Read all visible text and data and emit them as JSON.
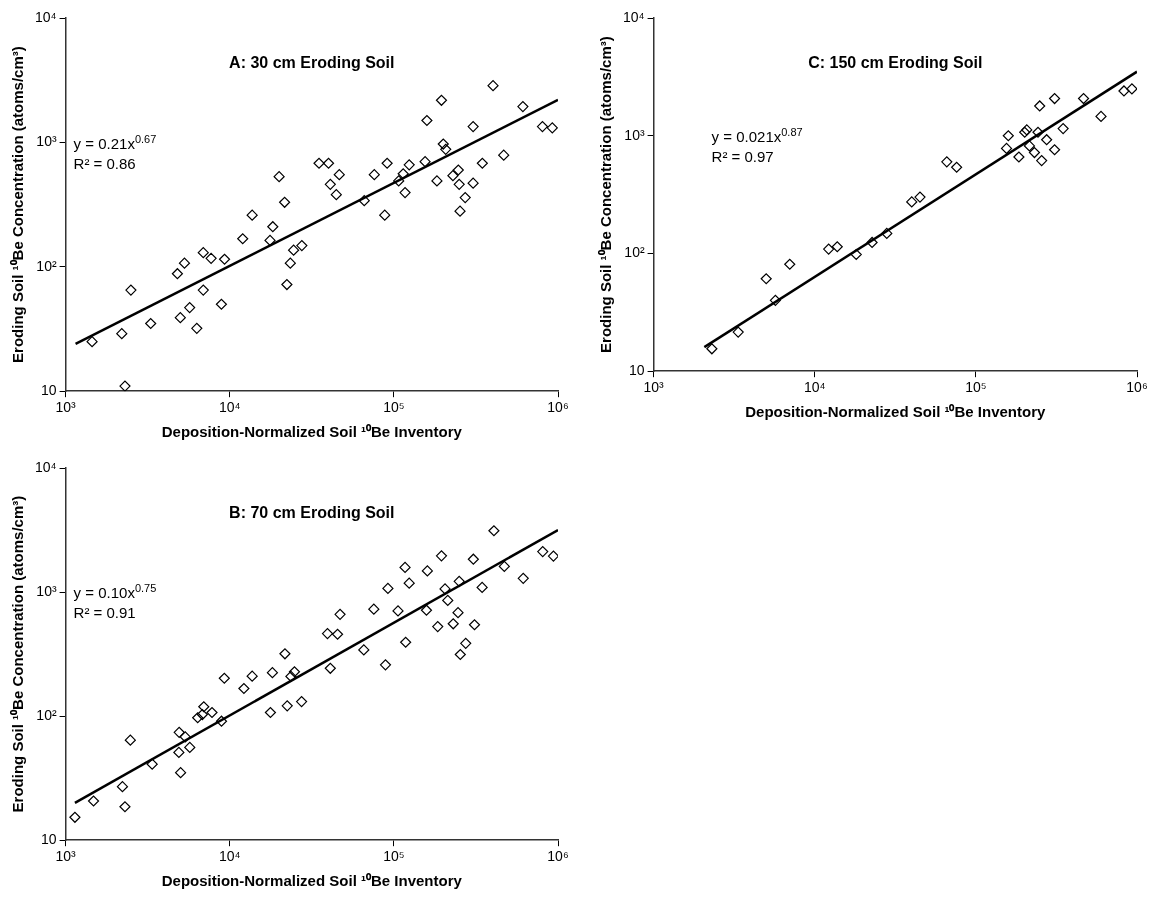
{
  "chart_data": [
    {
      "type": "scatter",
      "title": "A: 30 cm Eroding Soil",
      "xlabel": "Deposition-Normalized Soil ¹⁰Be Inventory",
      "ylabel": "Eroding Soil ¹⁰Be Concentration (atoms/cm³)",
      "log": "xy",
      "grid": false,
      "xlim": [
        1000,
        1000000
      ],
      "ylim": [
        10,
        10000
      ],
      "xticks": [
        {
          "value": 1000,
          "label": "10³"
        },
        {
          "value": 10000,
          "label": "10⁴"
        },
        {
          "value": 100000,
          "label": "10⁵"
        },
        {
          "value": 1000000,
          "label": "10⁶"
        }
      ],
      "yticks": [
        {
          "value": 10,
          "label": "10"
        },
        {
          "value": 100,
          "label": "10²"
        },
        {
          "value": 1000,
          "label": "10³"
        },
        {
          "value": 10000,
          "label": "10⁴"
        }
      ],
      "annotations": [
        "y = 0.21x$^{0.67}$",
        "R² = 0.86"
      ],
      "series": [
        {
          "type": "scatter",
          "marker": "diamond",
          "color": "#000000",
          "x": [
            1450,
            2200,
            2300,
            2500,
            3300,
            4800,
            5300,
            5000,
            5700,
            6300,
            6900,
            6900,
            7700,
            8900,
            9300,
            12000,
            13700,
            17600,
            18300,
            20000,
            21600,
            22300,
            23400,
            24500,
            27500,
            35000,
            40000,
            41000,
            44600,
            46500,
            66000,
            76000,
            88000,
            91000,
            107000,
            114000,
            117000,
            124000,
            155000,
            159000,
            183000,
            195000,
            200000,
            207000,
            229000,
            247000,
            250000,
            253000,
            272000,
            304000,
            304000,
            346000,
            402000,
            467000,
            611000,
            804000,
            923000
          ],
          "values": [
            25,
            29,
            11,
            65,
            35,
            88,
            107,
            39,
            47,
            32,
            130,
            65,
            117,
            50,
            115,
            168,
            260,
            163,
            210,
            530,
            330,
            72,
            107,
            136,
            148,
            680,
            680,
            460,
            380,
            550,
            340,
            550,
            260,
            680,
            490,
            560,
            395,
            660,
            700,
            1500,
            490,
            2180,
            970,
            880,
            540,
            600,
            460,
            280,
            360,
            1340,
            470,
            680,
            2860,
            790,
            1940,
            1340,
            1310
          ]
        },
        {
          "type": "line",
          "marker": "none",
          "color": "#000000",
          "x": [
            1150,
            1000000
          ],
          "values": [
            24,
            2200
          ]
        }
      ]
    },
    {
      "type": "scatter",
      "title": "C: 150 cm Eroding Soil",
      "xlabel": "Deposition-Normalized Soil ¹⁰Be Inventory",
      "ylabel": "Eroding Soil ¹⁰Be Concentration (atoms/cm³)",
      "log": "xy",
      "grid": false,
      "xlim": [
        1000,
        1000000
      ],
      "ylim": [
        10,
        10000
      ],
      "xticks": [
        {
          "value": 1000,
          "label": "10³"
        },
        {
          "value": 10000,
          "label": "10⁴"
        },
        {
          "value": 100000,
          "label": "10⁵"
        },
        {
          "value": 1000000,
          "label": "10⁶"
        }
      ],
      "yticks": [
        {
          "value": 10,
          "label": "10"
        },
        {
          "value": 100,
          "label": "10²"
        },
        {
          "value": 1000,
          "label": "10³"
        },
        {
          "value": 10000,
          "label": "10⁴"
        }
      ],
      "annotations": [
        "y = 0.021x$^{0.87}$",
        "R² = 0.97"
      ],
      "series": [
        {
          "type": "scatter",
          "marker": "diamond",
          "color": "#000000",
          "x": [
            2300,
            3350,
            5000,
            5700,
            7000,
            12200,
            13800,
            18100,
            22700,
            28000,
            40000,
            45000,
            66000,
            76000,
            155000,
            159000,
            185000,
            201000,
            207000,
            215000,
            231000,
            243000,
            249000,
            256000,
            275000,
            308000,
            308000,
            348000,
            466000,
            598000,
            830000,
            930000
          ],
          "values": [
            15.5,
            21.5,
            61,
            40,
            81,
            109,
            114,
            98,
            124,
            148,
            274,
            301,
            600,
            540,
            780,
            1000,
            660,
            1070,
            1120,
            820,
            720,
            1070,
            1790,
            615,
            925,
            2070,
            760,
            1150,
            2070,
            1460,
            2400,
            2500
          ]
        },
        {
          "type": "line",
          "marker": "none",
          "color": "#000000",
          "x": [
            2065,
            1000000
          ],
          "values": [
            16,
            3500
          ]
        }
      ]
    },
    {
      "type": "scatter",
      "title": "B: 70 cm Eroding Soil",
      "xlabel": "Deposition-Normalized Soil ¹⁰Be Inventory",
      "ylabel": "Eroding Soil ¹⁰Be Concentration (atoms/cm³)",
      "log": "xy",
      "grid": false,
      "xlim": [
        1000,
        1000000
      ],
      "ylim": [
        10,
        10000
      ],
      "xticks": [
        {
          "value": 1000,
          "label": "10³"
        },
        {
          "value": 10000,
          "label": "10⁴"
        },
        {
          "value": 100000,
          "label": "10⁵"
        },
        {
          "value": 1000000,
          "label": "10⁶"
        }
      ],
      "yticks": [
        {
          "value": 10,
          "label": "10"
        },
        {
          "value": 100,
          "label": "10²"
        },
        {
          "value": 1000,
          "label": "10³"
        },
        {
          "value": 10000,
          "label": "10⁴"
        }
      ],
      "annotations": [
        "y = 0.10x$^{0.75}$",
        "R² = 0.91"
      ],
      "series": [
        {
          "type": "scatter",
          "marker": "diamond",
          "color": "#000000",
          "x": [
            1140,
            1480,
            2220,
            2300,
            2480,
            3370,
            4920,
            4900,
            5020,
            5360,
            5710,
            6380,
            6810,
            6950,
            7800,
            8910,
            9270,
            12200,
            13700,
            17700,
            18200,
            21700,
            22400,
            23600,
            24800,
            27400,
            39400,
            41000,
            45400,
            47000,
            65600,
            75500,
            88900,
            92000,
            106000,
            117000,
            118000,
            124000,
            158000,
            160000,
            185000,
            195000,
            205000,
            213000,
            230000,
            246000,
            250000,
            254000,
            274000,
            305000,
            310000,
            345000,
            407000,
            471000,
            614000,
            807000,
            938000
          ],
          "values": [
            15.3,
            20.7,
            27,
            18.6,
            64,
            41,
            74,
            51,
            35,
            68,
            56,
            97,
            103,
            119,
            107,
            91,
            202,
            167,
            210,
            107,
            224,
            318,
            121,
            209,
            228,
            131,
            463,
            243,
            457,
            661,
            342,
            728,
            259,
            1070,
            705,
            1580,
            394,
            1180,
            714,
            1480,
            527,
            1960,
            1060,
            857,
            555,
            682,
            1220,
            314,
            386,
            1840,
            545,
            1090,
            3120,
            1610,
            1290,
            2120,
            1950
          ]
        },
        {
          "type": "line",
          "marker": "none",
          "color": "#000000",
          "x": [
            1140,
            1000000
          ],
          "values": [
            20,
            3160
          ]
        }
      ]
    }
  ]
}
